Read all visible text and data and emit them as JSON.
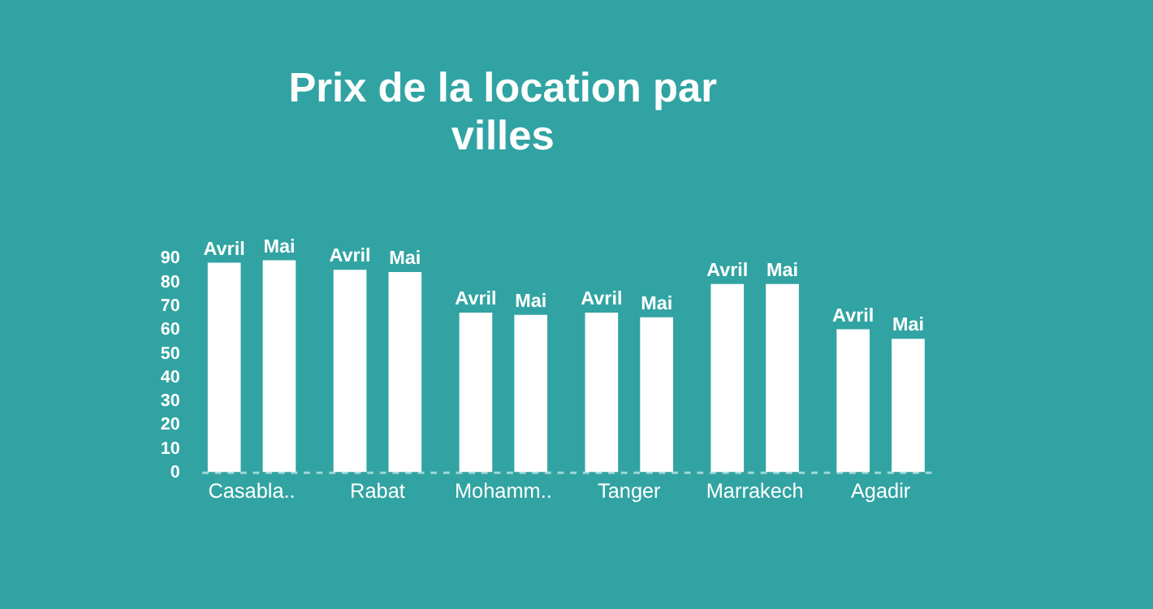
{
  "chart_data": {
    "type": "bar",
    "title": "Prix de la location par villes",
    "categories": [
      "Casabla..",
      "Rabat",
      "Mohamm..",
      "Tanger",
      "Marrakech",
      "Agadir"
    ],
    "series": [
      {
        "name": "Avril",
        "color": "#ffffff",
        "values": [
          88,
          85,
          67,
          67,
          79,
          60
        ]
      },
      {
        "name": "Mai",
        "color": "#ffffff",
        "values": [
          89,
          84,
          66,
          65,
          79,
          56
        ]
      }
    ],
    "ylim": [
      0,
      90
    ],
    "yticks": [
      0,
      10,
      20,
      30,
      40,
      50,
      60,
      70,
      80,
      90
    ],
    "grid": false,
    "legend": false
  }
}
